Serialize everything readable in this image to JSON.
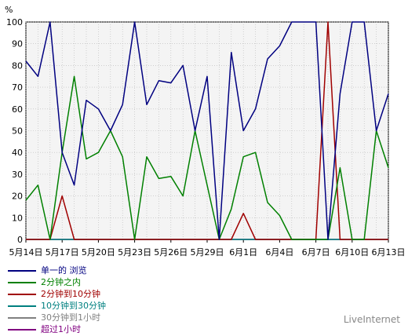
{
  "chart_data": {
    "type": "line",
    "ylabel": "%",
    "ylim": [
      0,
      100
    ],
    "yticks": [
      0,
      10,
      20,
      30,
      40,
      50,
      60,
      70,
      80,
      90,
      100
    ],
    "xticks": [
      "5月14日",
      "5月17日",
      "5月20日",
      "5月23日",
      "5月26日",
      "5月29日",
      "6月1日",
      "6月4日",
      "6月7日",
      "6月10日",
      "6月13日"
    ],
    "grid": true,
    "series": [
      {
        "name": "单一的 浏览",
        "color": "#000080",
        "values": [
          82,
          75,
          100,
          40,
          25,
          64,
          60,
          50,
          62,
          100,
          62,
          73,
          72,
          80,
          50,
          75,
          0,
          86,
          50,
          60,
          83,
          89,
          100,
          100,
          100,
          0,
          67,
          100,
          100,
          50,
          67
        ]
      },
      {
        "name": "2分钟之内",
        "color": "#008000",
        "values": [
          18,
          25,
          0,
          40,
          75,
          37,
          40,
          50,
          38,
          0,
          38,
          28,
          29,
          20,
          50,
          25,
          0,
          14,
          38,
          40,
          17,
          11,
          0,
          0,
          0,
          0,
          33,
          0,
          0,
          50,
          33
        ]
      },
      {
        "name": "2分钟到10分钟",
        "color": "#a00000",
        "values": [
          0,
          0,
          0,
          20,
          0,
          0,
          0,
          0,
          0,
          0,
          0,
          0,
          0,
          0,
          0,
          0,
          0,
          0,
          12,
          0,
          0,
          0,
          0,
          0,
          0,
          100,
          0,
          0,
          0,
          0,
          0
        ]
      },
      {
        "name": "10分钟到30分钟",
        "color": "#008080",
        "values": [
          0,
          0,
          0,
          0,
          0,
          0,
          0,
          0,
          0,
          0,
          0,
          0,
          0,
          0,
          0,
          0,
          0,
          0,
          0,
          0,
          0,
          0,
          0,
          0,
          0,
          0,
          0,
          0,
          0,
          0,
          0
        ]
      },
      {
        "name": "30分钟到1小时",
        "color": "#808080",
        "values": [
          0,
          0,
          0,
          0,
          0,
          0,
          0,
          0,
          0,
          0,
          0,
          0,
          0,
          0,
          0,
          0,
          0,
          0,
          0,
          0,
          0,
          0,
          0,
          0,
          0,
          0,
          0,
          0,
          0,
          0,
          0
        ]
      },
      {
        "name": "超过1小时",
        "color": "#800080",
        "values": [
          0,
          0,
          0,
          0,
          0,
          0,
          0,
          0,
          0,
          0,
          0,
          0,
          0,
          0,
          0,
          0,
          0,
          0,
          0,
          0,
          0,
          0,
          0,
          0,
          0,
          0,
          0,
          0,
          0,
          0,
          0
        ]
      }
    ]
  },
  "watermark": "LiveInternet"
}
